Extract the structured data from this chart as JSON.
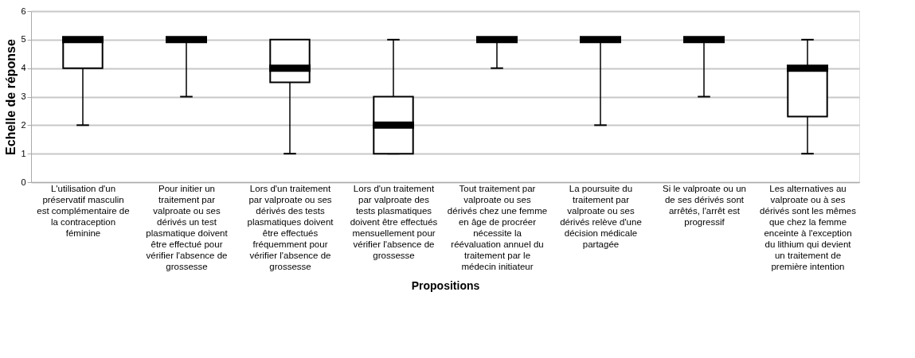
{
  "chart_data": {
    "type": "box",
    "xlabel": "Propositions",
    "ylabel": "Echelle de réponse",
    "categories": [
      "L'utilisation d'un préservatif masculin est complémentaire de la contraception féminine",
      "Pour initier un traitement par valproate ou ses dérivés un test plasmatique doivent être effectué pour vérifier l'absence de grossesse",
      "Lors d'un traitement par valproate ou ses dérivés des tests plasmatiques doivent être effectués fréquemment pour vérifier l'absence de grossesse",
      "Lors d'un traitement par valproate des tests plasmatiques doivent être effectués mensuellement pour vérifier l'absence de grossesse",
      "Tout traitement par valproate ou ses dérivés chez une femme en âge de procréer nécessite la réévaluation annuel du traitement par le médecin initiateur",
      "La poursuite du traitement par valproate ou ses dérivés relève d'une décision médicale partagée",
      "Si le valproate ou un de ses dérivés sont arrêtés, l'arrêt est progressif",
      "Les alternatives au valproate ou à ses dérivés sont les mêmes que chez la femme enceinte à l'exception du lithium qui devient un traitement de première intention"
    ],
    "boxes": [
      {
        "low": 2,
        "q1": 4,
        "median": 5,
        "q3": 5,
        "high": 5
      },
      {
        "low": 3,
        "q1": 5,
        "median": 5,
        "q3": 5,
        "high": 5
      },
      {
        "low": 1,
        "q1": 3.5,
        "median": 4,
        "q3": 5,
        "high": 5
      },
      {
        "low": 1,
        "q1": 1,
        "median": 2,
        "q3": 3,
        "high": 5
      },
      {
        "low": 4,
        "q1": 5,
        "median": 5,
        "q3": 5,
        "high": 5
      },
      {
        "low": 2,
        "q1": 5,
        "median": 5,
        "q3": 5,
        "high": 5
      },
      {
        "low": 3,
        "q1": 5,
        "median": 5,
        "q3": 5,
        "high": 5
      },
      {
        "low": 1,
        "q1": 2.3,
        "median": 4,
        "q3": 4,
        "high": 5
      }
    ],
    "color": "#000000",
    "ylim": [
      0,
      6
    ],
    "yticks": [
      0,
      1,
      2,
      3,
      4,
      5,
      6
    ],
    "grid": "y"
  }
}
